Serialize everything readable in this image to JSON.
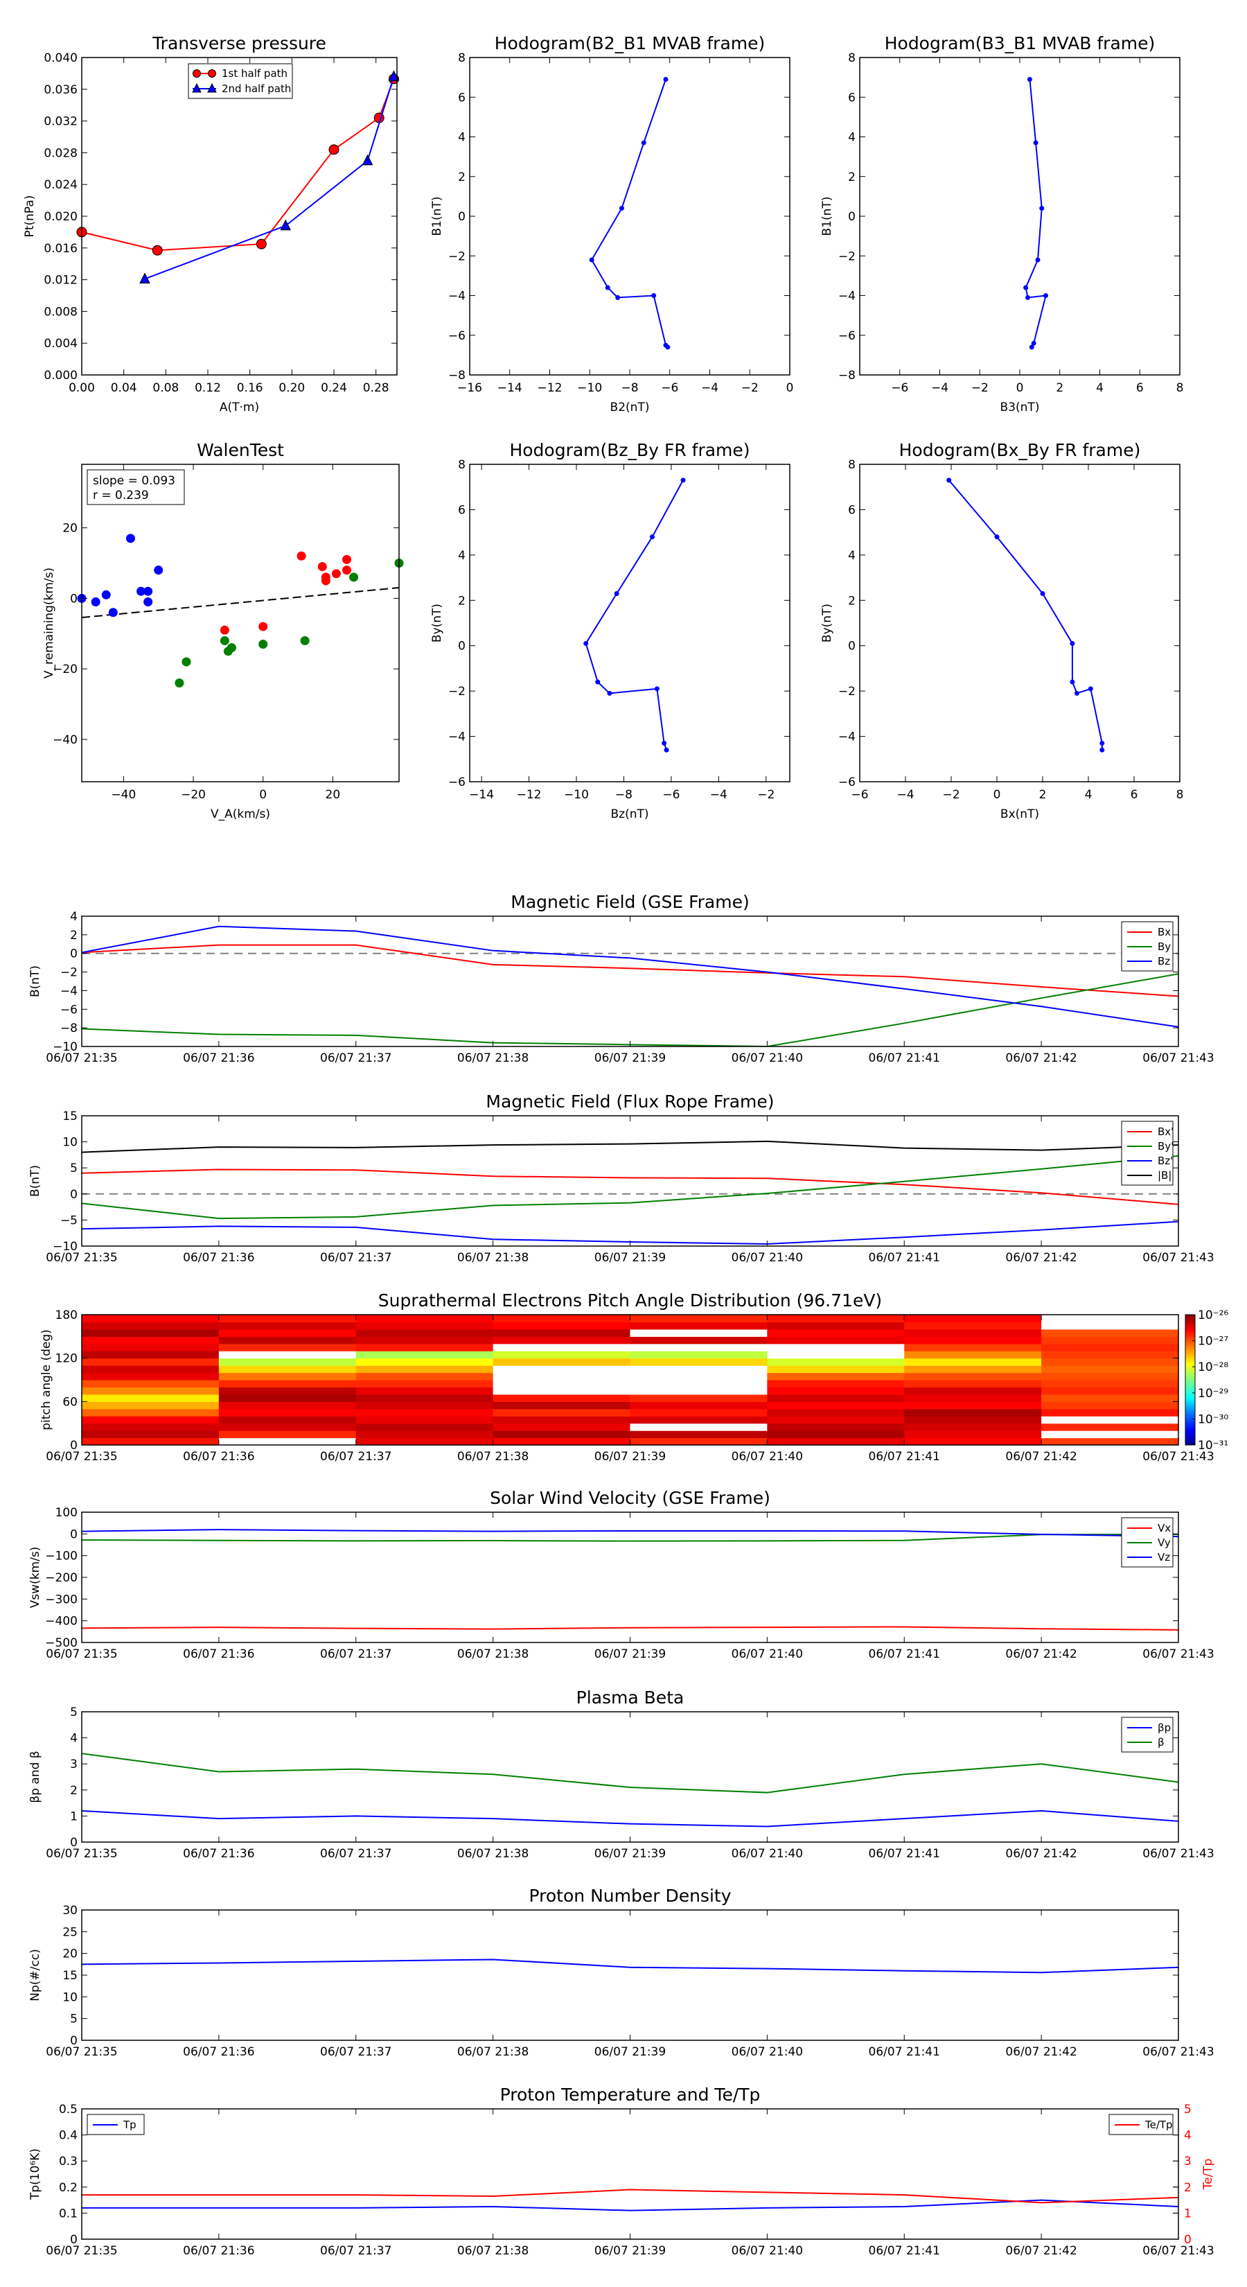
{
  "colors": {
    "red": "#ff0000",
    "green": "#008000",
    "blue": "#0000ff",
    "black": "#000000",
    "gray": "#808080"
  },
  "time_ticks": [
    "06/07 21:35",
    "06/07 21:36",
    "06/07 21:37",
    "06/07 21:38",
    "06/07 21:39",
    "06/07 21:40",
    "06/07 21:41",
    "06/07 21:42",
    "06/07 21:43"
  ],
  "chart_data": [
    {
      "id": "transverse_pressure",
      "type": "line",
      "title": "Transverse pressure",
      "xlabel": "A(T·m)",
      "ylabel": "Pt(nPa)",
      "xlim": [
        0,
        0.3
      ],
      "ylim": [
        0,
        0.04
      ],
      "xticks": [
        "0.00",
        "0.04",
        "0.08",
        "0.12",
        "0.16",
        "0.20",
        "0.24",
        "0.28"
      ],
      "yticks": [
        "0.000",
        "0.004",
        "0.008",
        "0.012",
        "0.016",
        "0.020",
        "0.024",
        "0.028",
        "0.032",
        "0.036",
        "0.040"
      ],
      "legend": "top-center",
      "series": [
        {
          "name": "1st half path",
          "color": "#ff0000",
          "marker": "circle",
          "x": [
            0.0,
            0.072,
            0.171,
            0.24,
            0.283,
            0.297
          ],
          "y": [
            0.018,
            0.0157,
            0.0165,
            0.0284,
            0.0324,
            0.0373
          ]
        },
        {
          "name": "2nd half path",
          "color": "#0000ff",
          "marker": "triangle",
          "x": [
            0.06,
            0.194,
            0.272,
            0.297
          ],
          "y": [
            0.0121,
            0.0188,
            0.027,
            0.0376
          ]
        }
      ]
    },
    {
      "id": "hodogram_b2_b1",
      "type": "line",
      "title": "Hodogram(B2_B1 MVAB frame)",
      "xlabel": "B2(nT)",
      "ylabel": "B1(nT)",
      "xlim": [
        -16,
        0
      ],
      "ylim": [
        -8,
        8
      ],
      "xticks": [
        "−16",
        "−14",
        "−12",
        "−10",
        "−8",
        "−6",
        "−4",
        "−2",
        "0"
      ],
      "yticks": [
        "−8",
        "−6",
        "−4",
        "−2",
        "0",
        "2",
        "4",
        "6",
        "8"
      ],
      "series": [
        {
          "name": "",
          "color": "#0000ff",
          "marker": "dot",
          "x": [
            -6.2,
            -7.3,
            -8.4,
            -9.9,
            -9.1,
            -8.6,
            -6.8,
            -6.2,
            -6.1
          ],
          "y": [
            6.9,
            3.7,
            0.4,
            -2.2,
            -3.6,
            -4.1,
            -4.0,
            -6.5,
            -6.6
          ]
        }
      ]
    },
    {
      "id": "hodogram_b3_b1",
      "type": "line",
      "title": "Hodogram(B3_B1 MVAB frame)",
      "xlabel": "B3(nT)",
      "ylabel": "B1(nT)",
      "xlim": [
        -8,
        8
      ],
      "ylim": [
        -8,
        8
      ],
      "xticks": [
        "−6",
        "−4",
        "−2",
        "0",
        "2",
        "4",
        "6",
        "8"
      ],
      "yticks": [
        "−8",
        "−6",
        "−4",
        "−2",
        "0",
        "2",
        "4",
        "6",
        "8"
      ],
      "series": [
        {
          "name": "",
          "color": "#0000ff",
          "marker": "dot",
          "x": [
            0.5,
            0.8,
            1.1,
            0.9,
            0.3,
            0.4,
            1.3,
            0.7,
            0.6
          ],
          "y": [
            6.9,
            3.7,
            0.4,
            -2.2,
            -3.6,
            -4.1,
            -4.0,
            -6.4,
            -6.6
          ]
        }
      ]
    },
    {
      "id": "walen_test",
      "type": "scatter",
      "title": "WalenTest",
      "xlabel": "V_A(km/s)",
      "ylabel": "V_remaining(km/s)",
      "xlim": [
        -52,
        39
      ],
      "ylim": [
        -52,
        38
      ],
      "xticks": [
        "−40",
        "−20",
        "0",
        "20"
      ],
      "yticks": [
        "−40",
        "−20",
        "0",
        "20"
      ],
      "annotation": [
        "slope = 0.093",
        "r = 0.239"
      ],
      "fit_line": {
        "slope": 0.093,
        "intercept": -0.6,
        "color": "#000000",
        "style": "dashed"
      },
      "series": [
        {
          "name": "",
          "color": "#0000ff",
          "x": [
            -52,
            -48,
            -45,
            -43,
            -38,
            -35,
            -33,
            -33,
            -30
          ],
          "y": [
            0,
            -1,
            1,
            -4,
            17,
            2,
            -1,
            2,
            8
          ]
        },
        {
          "name": "",
          "color": "#ff0000",
          "x": [
            -11,
            0,
            11,
            17,
            18,
            18,
            21,
            24,
            24
          ],
          "y": [
            -9,
            -8,
            12,
            9,
            5,
            6,
            7,
            11,
            8
          ]
        },
        {
          "name": "",
          "color": "#008000",
          "x": [
            -24,
            -22,
            -11,
            -10,
            -9,
            0,
            12,
            26,
            39
          ],
          "y": [
            -24,
            -18,
            -12,
            -15,
            -14,
            -13,
            -12,
            6,
            10
          ]
        }
      ]
    },
    {
      "id": "hodogram_bz_by",
      "type": "line",
      "title": "Hodogram(Bz_By FR frame)",
      "xlabel": "Bz(nT)",
      "ylabel": "By(nT)",
      "xlim": [
        -14.5,
        -1
      ],
      "ylim": [
        -6,
        8
      ],
      "xticks": [
        "−14",
        "−12",
        "−10",
        "−8",
        "−6",
        "−4",
        "−2"
      ],
      "yticks": [
        "−6",
        "−4",
        "−2",
        "0",
        "2",
        "4",
        "6",
        "8"
      ],
      "series": [
        {
          "name": "",
          "color": "#0000ff",
          "marker": "dot",
          "x": [
            -5.5,
            -6.8,
            -8.3,
            -9.6,
            -9.1,
            -8.6,
            -6.6,
            -6.3,
            -6.2
          ],
          "y": [
            7.3,
            4.8,
            2.3,
            0.1,
            -1.6,
            -2.1,
            -1.9,
            -4.3,
            -4.6
          ]
        }
      ]
    },
    {
      "id": "hodogram_bx_by",
      "type": "line",
      "title": "Hodogram(Bx_By FR frame)",
      "xlabel": "Bx(nT)",
      "ylabel": "By(nT)",
      "xlim": [
        -6,
        8
      ],
      "ylim": [
        -6,
        8
      ],
      "xticks": [
        "−6",
        "−4",
        "−2",
        "0",
        "2",
        "4",
        "6",
        "8"
      ],
      "yticks": [
        "−6",
        "−4",
        "−2",
        "0",
        "2",
        "4",
        "6",
        "8"
      ],
      "series": [
        {
          "name": "",
          "color": "#0000ff",
          "marker": "dot",
          "x": [
            -2.1,
            0.0,
            2.0,
            3.3,
            3.3,
            3.5,
            4.1,
            4.6,
            4.6
          ],
          "y": [
            7.3,
            4.8,
            2.3,
            0.1,
            -1.6,
            -2.1,
            -1.9,
            -4.3,
            -4.6
          ]
        }
      ]
    },
    {
      "id": "mag_gse",
      "type": "line",
      "title": "Magnetic Field (GSE Frame)",
      "ylabel": "B(nT)",
      "ylim": [
        -10,
        4
      ],
      "yticks": [
        "−10",
        "−8",
        "−6",
        "−4",
        "−2",
        "0",
        "2",
        "4"
      ],
      "legend": "top-right",
      "zero_line": true,
      "series": [
        {
          "name": "Bx",
          "color": "#ff0000",
          "values": [
            0.1,
            0.9,
            0.9,
            -1.2,
            -1.6,
            -2.1,
            -2.5,
            -3.6,
            -4.6
          ]
        },
        {
          "name": "By",
          "color": "#008000",
          "values": [
            -8.1,
            -8.7,
            -8.8,
            -9.6,
            -9.8,
            -10.0,
            -7.5,
            -4.8,
            -2.2
          ]
        },
        {
          "name": "Bz",
          "color": "#0000ff",
          "values": [
            0.1,
            2.9,
            2.4,
            0.3,
            -0.5,
            -2.0,
            -3.8,
            -5.7,
            -7.9
          ]
        }
      ]
    },
    {
      "id": "mag_fr",
      "type": "line",
      "title": "Magnetic Field (Flux Rope Frame)",
      "ylabel": "B(nT)",
      "ylim": [
        -10,
        15
      ],
      "yticks": [
        "−10",
        "−5",
        "0",
        "5",
        "10",
        "15"
      ],
      "legend": "top-right",
      "zero_line": true,
      "series": [
        {
          "name": "Bx'",
          "color": "#ff0000",
          "values": [
            4.0,
            4.7,
            4.6,
            3.4,
            3.1,
            3.0,
            1.8,
            0.2,
            -2.0
          ]
        },
        {
          "name": "By'",
          "color": "#008000",
          "values": [
            -1.8,
            -4.7,
            -4.4,
            -2.2,
            -1.7,
            0.1,
            2.4,
            4.8,
            7.3
          ]
        },
        {
          "name": "Bz'",
          "color": "#0000ff",
          "values": [
            -6.7,
            -6.2,
            -6.4,
            -8.7,
            -9.2,
            -9.6,
            -8.3,
            -6.9,
            -5.3
          ]
        },
        {
          "name": "|B|",
          "color": "#000000",
          "values": [
            8.0,
            9.0,
            8.9,
            9.4,
            9.6,
            10.1,
            8.8,
            8.4,
            9.4
          ]
        }
      ]
    },
    {
      "id": "pad",
      "type": "heatmap",
      "title": "Suprathermal Electrons Pitch Angle Distribution (96.71eV)",
      "ylabel": "pitch angle (deg)",
      "ylim": [
        0,
        180
      ],
      "yticks": [
        "0",
        "60",
        "120",
        "180"
      ],
      "colorbar_ticks": [
        "10⁻³¹",
        "10⁻³⁰",
        "10⁻²⁹",
        "10⁻²⁸",
        "10⁻²⁷",
        "10⁻²⁶"
      ],
      "colorbar_range": [
        -31,
        -26
      ],
      "columns": 8,
      "column_values": [
        [
          -26.7,
          -26.3,
          -26.4,
          -26.6,
          -27.1,
          -27.5,
          -27.8,
          -27.3,
          -27.0,
          -26.5,
          -26.4,
          -26.8,
          -26.3,
          -26.5,
          -26.6,
          -26.2,
          -26.4,
          -26.6
        ],
        [
          -31.0,
          -26.8,
          -26.4,
          -26.3,
          -26.6,
          -26.5,
          -26.2,
          -26.3,
          -26.8,
          -27.2,
          -27.7,
          -28.2,
          -31.0,
          -26.8,
          -26.3,
          -26.6,
          -26.4,
          -26.7
        ],
        [
          -26.5,
          -26.4,
          -26.3,
          -26.5,
          -26.6,
          -26.4,
          -26.3,
          -26.5,
          -26.8,
          -27.0,
          -27.5,
          -27.9,
          -28.3,
          -26.7,
          -26.4,
          -26.3,
          -26.5,
          -26.6
        ],
        [
          -26.6,
          -26.2,
          -26.5,
          -26.4,
          -26.8,
          -26.3,
          -26.7,
          -31.0,
          -31.0,
          -31.0,
          -31.0,
          -27.6,
          -28.1,
          -31.0,
          -26.5,
          -26.3,
          -26.6,
          -26.7
        ],
        [
          -26.8,
          -26.3,
          -31.0,
          -26.4,
          -26.7,
          -26.5,
          -26.8,
          -31.0,
          -31.0,
          -31.0,
          -31.0,
          -27.7,
          -28.2,
          -31.0,
          -26.4,
          -31.0,
          -26.5,
          -26.8
        ],
        [
          -26.5,
          -26.2,
          -26.3,
          -26.5,
          -26.4,
          -26.6,
          -26.4,
          -26.6,
          -26.7,
          -27.1,
          -27.7,
          -28.1,
          -31.0,
          -31.0,
          -26.5,
          -26.6,
          -26.4,
          -26.7
        ],
        [
          -26.6,
          -26.5,
          -26.4,
          -26.3,
          -26.2,
          -26.6,
          -26.5,
          -26.4,
          -26.8,
          -27.0,
          -27.4,
          -27.8,
          -27.3,
          -26.9,
          -26.6,
          -26.5,
          -26.7,
          -26.6
        ],
        [
          -26.9,
          -31.0,
          -26.8,
          -31.0,
          -26.7,
          -26.9,
          -27.0,
          -26.8,
          -26.9,
          -27.0,
          -27.1,
          -27.0,
          -26.9,
          -26.8,
          -26.9,
          -27.0,
          -31.0,
          -31.0
        ]
      ]
    },
    {
      "id": "sw_velocity",
      "type": "line",
      "title": "Solar Wind Velocity (GSE Frame)",
      "ylabel": "Vsw(km/s)",
      "ylim": [
        -500,
        100
      ],
      "yticks": [
        "−500",
        "−400",
        "−300",
        "−200",
        "−100",
        "0",
        "100"
      ],
      "legend": "top-right",
      "series": [
        {
          "name": "Vx",
          "color": "#ff0000",
          "values": [
            -434,
            -430,
            -435,
            -438,
            -432,
            -430,
            -428,
            -437,
            -442
          ]
        },
        {
          "name": "Vy",
          "color": "#008000",
          "values": [
            -28,
            -30,
            -32,
            -31,
            -33,
            -32,
            -30,
            -3,
            -2
          ]
        },
        {
          "name": "Vz",
          "color": "#0000ff",
          "values": [
            12,
            20,
            15,
            12,
            14,
            14,
            13,
            -2,
            -12
          ]
        }
      ]
    },
    {
      "id": "plasma_beta",
      "type": "line",
      "title": "Plasma Beta",
      "ylabel": "βp and β",
      "ylim": [
        0,
        5
      ],
      "yticks": [
        "0",
        "1",
        "2",
        "3",
        "4",
        "5"
      ],
      "legend": "top-right",
      "series": [
        {
          "name": "βp",
          "color": "#0000ff",
          "values": [
            1.2,
            0.9,
            1.0,
            0.9,
            0.7,
            0.6,
            0.9,
            1.2,
            0.8
          ]
        },
        {
          "name": "β",
          "color": "#008000",
          "values": [
            3.4,
            2.7,
            2.8,
            2.6,
            2.1,
            1.9,
            2.6,
            3.0,
            2.3
          ]
        }
      ]
    },
    {
      "id": "proton_density",
      "type": "line",
      "title": "Proton Number Density",
      "ylabel": "Np(#/cc)",
      "ylim": [
        0,
        30
      ],
      "yticks": [
        "0",
        "5",
        "10",
        "15",
        "20",
        "25",
        "30"
      ],
      "series": [
        {
          "name": "",
          "color": "#0000ff",
          "values": [
            17.5,
            17.8,
            18.2,
            18.6,
            16.8,
            16.5,
            16.0,
            15.6,
            16.8
          ]
        }
      ]
    },
    {
      "id": "proton_temperature",
      "type": "line",
      "title": "Proton Temperature and Te/Tp",
      "ylabel": "Tp(10⁶K)",
      "ylabel_right": "Te/Tp",
      "ylim": [
        0,
        0.5
      ],
      "ylim_right": [
        0,
        5
      ],
      "yticks": [
        "0",
        "0.1",
        "0.2",
        "0.3",
        "0.4",
        "0.5"
      ],
      "yticks_right": [
        "0",
        "1",
        "2",
        "3",
        "4",
        "5"
      ],
      "series": [
        {
          "name": "Tp",
          "color": "#0000ff",
          "axis": "left",
          "values": [
            0.12,
            0.12,
            0.12,
            0.125,
            0.11,
            0.12,
            0.125,
            0.15,
            0.125
          ]
        },
        {
          "name": "Te/Tp",
          "color": "#ff0000",
          "axis": "right",
          "values": [
            1.7,
            1.7,
            1.7,
            1.65,
            1.9,
            1.8,
            1.7,
            1.4,
            1.6
          ]
        }
      ]
    }
  ]
}
